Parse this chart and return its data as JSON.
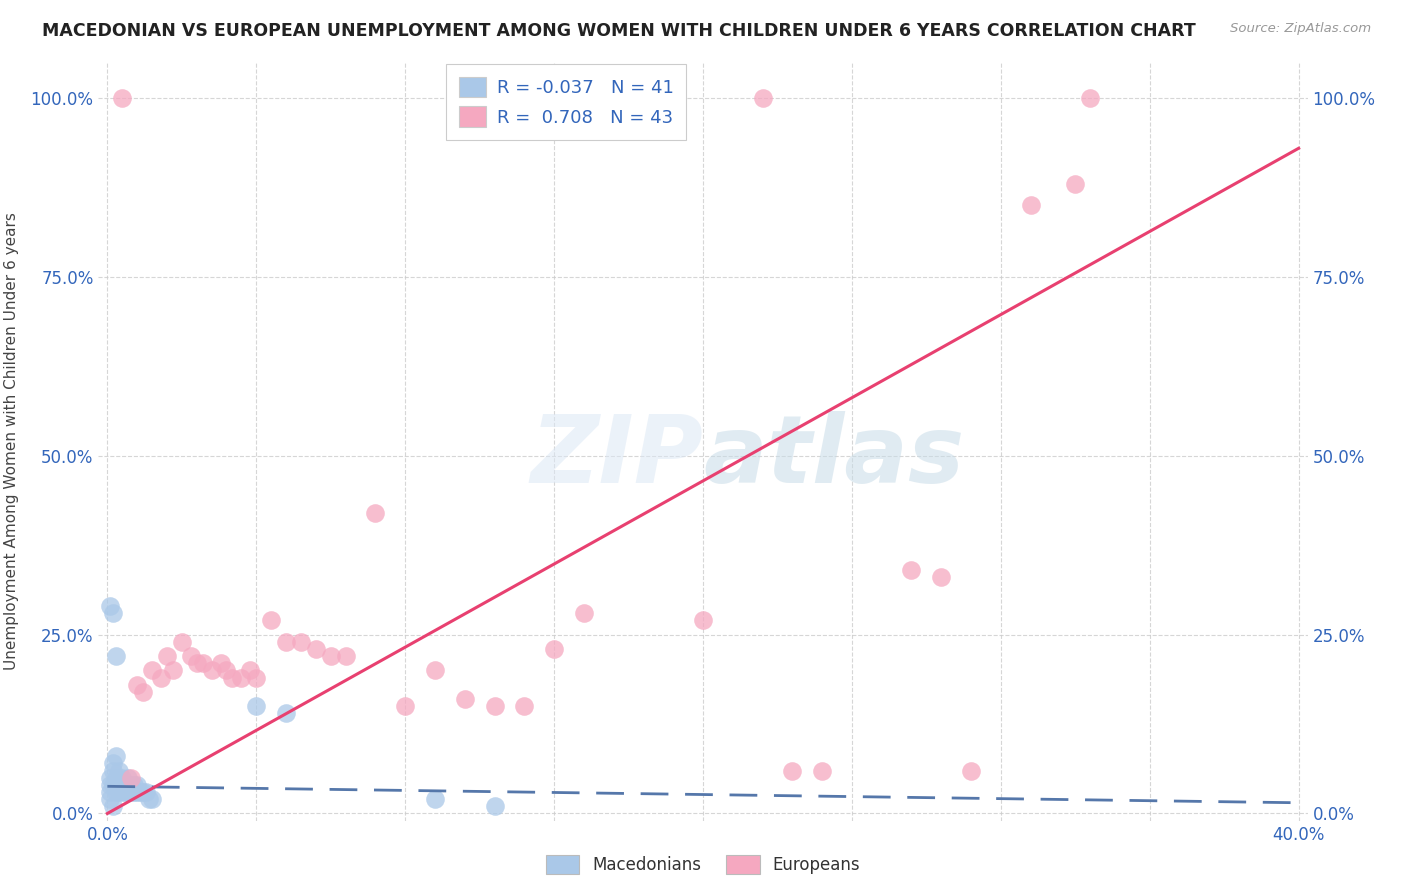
{
  "title": "MACEDONIAN VS EUROPEAN UNEMPLOYMENT AMONG WOMEN WITH CHILDREN UNDER 6 YEARS CORRELATION CHART",
  "source": "Source: ZipAtlas.com",
  "ylabel": "Unemployment Among Women with Children Under 6 years",
  "xlabel": "",
  "xlim": [
    -0.003,
    0.403
  ],
  "ylim": [
    -0.01,
    1.05
  ],
  "yticks": [
    0.0,
    0.25,
    0.5,
    0.75,
    1.0
  ],
  "ytick_labels": [
    "0.0%",
    "25.0%",
    "50.0%",
    "75.0%",
    "100.0%"
  ],
  "xticks": [
    0.0,
    0.05,
    0.1,
    0.15,
    0.2,
    0.25,
    0.3,
    0.35,
    0.4
  ],
  "xtick_labels": [
    "0.0%",
    "",
    "",
    "",
    "",
    "",
    "",
    "",
    "40.0%"
  ],
  "macedonian_color": "#aac8e8",
  "european_color": "#f5a8c0",
  "macedonian_line_color": "#5577aa",
  "european_line_color": "#e84070",
  "R_macedonian": -0.037,
  "N_macedonian": 41,
  "R_european": 0.708,
  "N_european": 43,
  "background_color": "#ffffff",
  "macedonians_x": [
    0.001,
    0.001,
    0.001,
    0.002,
    0.002,
    0.002,
    0.003,
    0.003,
    0.003,
    0.003,
    0.004,
    0.004,
    0.004,
    0.005,
    0.005,
    0.005,
    0.006,
    0.006,
    0.007,
    0.007,
    0.007,
    0.008,
    0.008,
    0.009,
    0.009,
    0.01,
    0.01,
    0.011,
    0.012,
    0.013,
    0.014,
    0.015,
    0.001,
    0.002,
    0.003,
    0.05,
    0.06,
    0.11,
    0.13,
    0.001,
    0.002
  ],
  "macedonians_y": [
    0.05,
    0.04,
    0.03,
    0.07,
    0.06,
    0.04,
    0.08,
    0.05,
    0.04,
    0.03,
    0.06,
    0.04,
    0.03,
    0.05,
    0.04,
    0.03,
    0.04,
    0.03,
    0.05,
    0.04,
    0.03,
    0.04,
    0.03,
    0.04,
    0.03,
    0.04,
    0.03,
    0.03,
    0.03,
    0.03,
    0.02,
    0.02,
    0.29,
    0.28,
    0.22,
    0.15,
    0.14,
    0.02,
    0.01,
    0.02,
    0.01
  ],
  "europeans_x": [
    0.005,
    0.008,
    0.01,
    0.012,
    0.015,
    0.018,
    0.02,
    0.022,
    0.025,
    0.028,
    0.03,
    0.032,
    0.035,
    0.038,
    0.04,
    0.042,
    0.045,
    0.048,
    0.05,
    0.055,
    0.06,
    0.065,
    0.07,
    0.075,
    0.08,
    0.09,
    0.1,
    0.11,
    0.12,
    0.13,
    0.14,
    0.15,
    0.16,
    0.2,
    0.22,
    0.23,
    0.24,
    0.27,
    0.28,
    0.29,
    0.31,
    0.325,
    0.33
  ],
  "europeans_y": [
    1.0,
    0.05,
    0.18,
    0.17,
    0.2,
    0.19,
    0.22,
    0.2,
    0.24,
    0.22,
    0.21,
    0.21,
    0.2,
    0.21,
    0.2,
    0.19,
    0.19,
    0.2,
    0.19,
    0.27,
    0.24,
    0.24,
    0.23,
    0.22,
    0.22,
    0.42,
    0.15,
    0.2,
    0.16,
    0.15,
    0.15,
    0.23,
    0.28,
    0.27,
    1.0,
    0.06,
    0.06,
    0.34,
    0.33,
    0.06,
    0.85,
    0.88,
    1.0
  ],
  "mac_trend_x0": 0.0,
  "mac_trend_x1": 0.4,
  "mac_trend_y0": 0.038,
  "mac_trend_y1": 0.015,
  "eur_trend_x0": 0.0,
  "eur_trend_x1": 0.4,
  "eur_trend_y0": 0.0,
  "eur_trend_y1": 0.93
}
